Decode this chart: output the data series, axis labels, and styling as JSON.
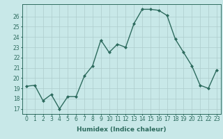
{
  "x": [
    0,
    1,
    2,
    3,
    4,
    5,
    6,
    7,
    8,
    9,
    10,
    11,
    12,
    13,
    14,
    15,
    16,
    17,
    18,
    19,
    20,
    21,
    22,
    23
  ],
  "y": [
    19.2,
    19.3,
    17.8,
    18.4,
    17.0,
    18.2,
    18.2,
    20.2,
    21.2,
    23.7,
    22.5,
    23.3,
    23.0,
    25.3,
    26.7,
    26.7,
    26.6,
    26.1,
    23.8,
    22.5,
    21.2,
    19.3,
    19.0,
    20.8
  ],
  "line_color": "#2d6b5e",
  "marker": "D",
  "marker_size": 2,
  "line_width": 1.0,
  "background_color": "#c8e8e8",
  "grid_color": "#aecccc",
  "xlabel": "Humidex (Indice chaleur)",
  "xlabel_fontsize": 6.5,
  "ylabel_ticks": [
    17,
    18,
    19,
    20,
    21,
    22,
    23,
    24,
    25,
    26
  ],
  "xlim": [
    -0.5,
    23.5
  ],
  "ylim": [
    16.5,
    27.2
  ],
  "tick_fontsize": 5.5
}
